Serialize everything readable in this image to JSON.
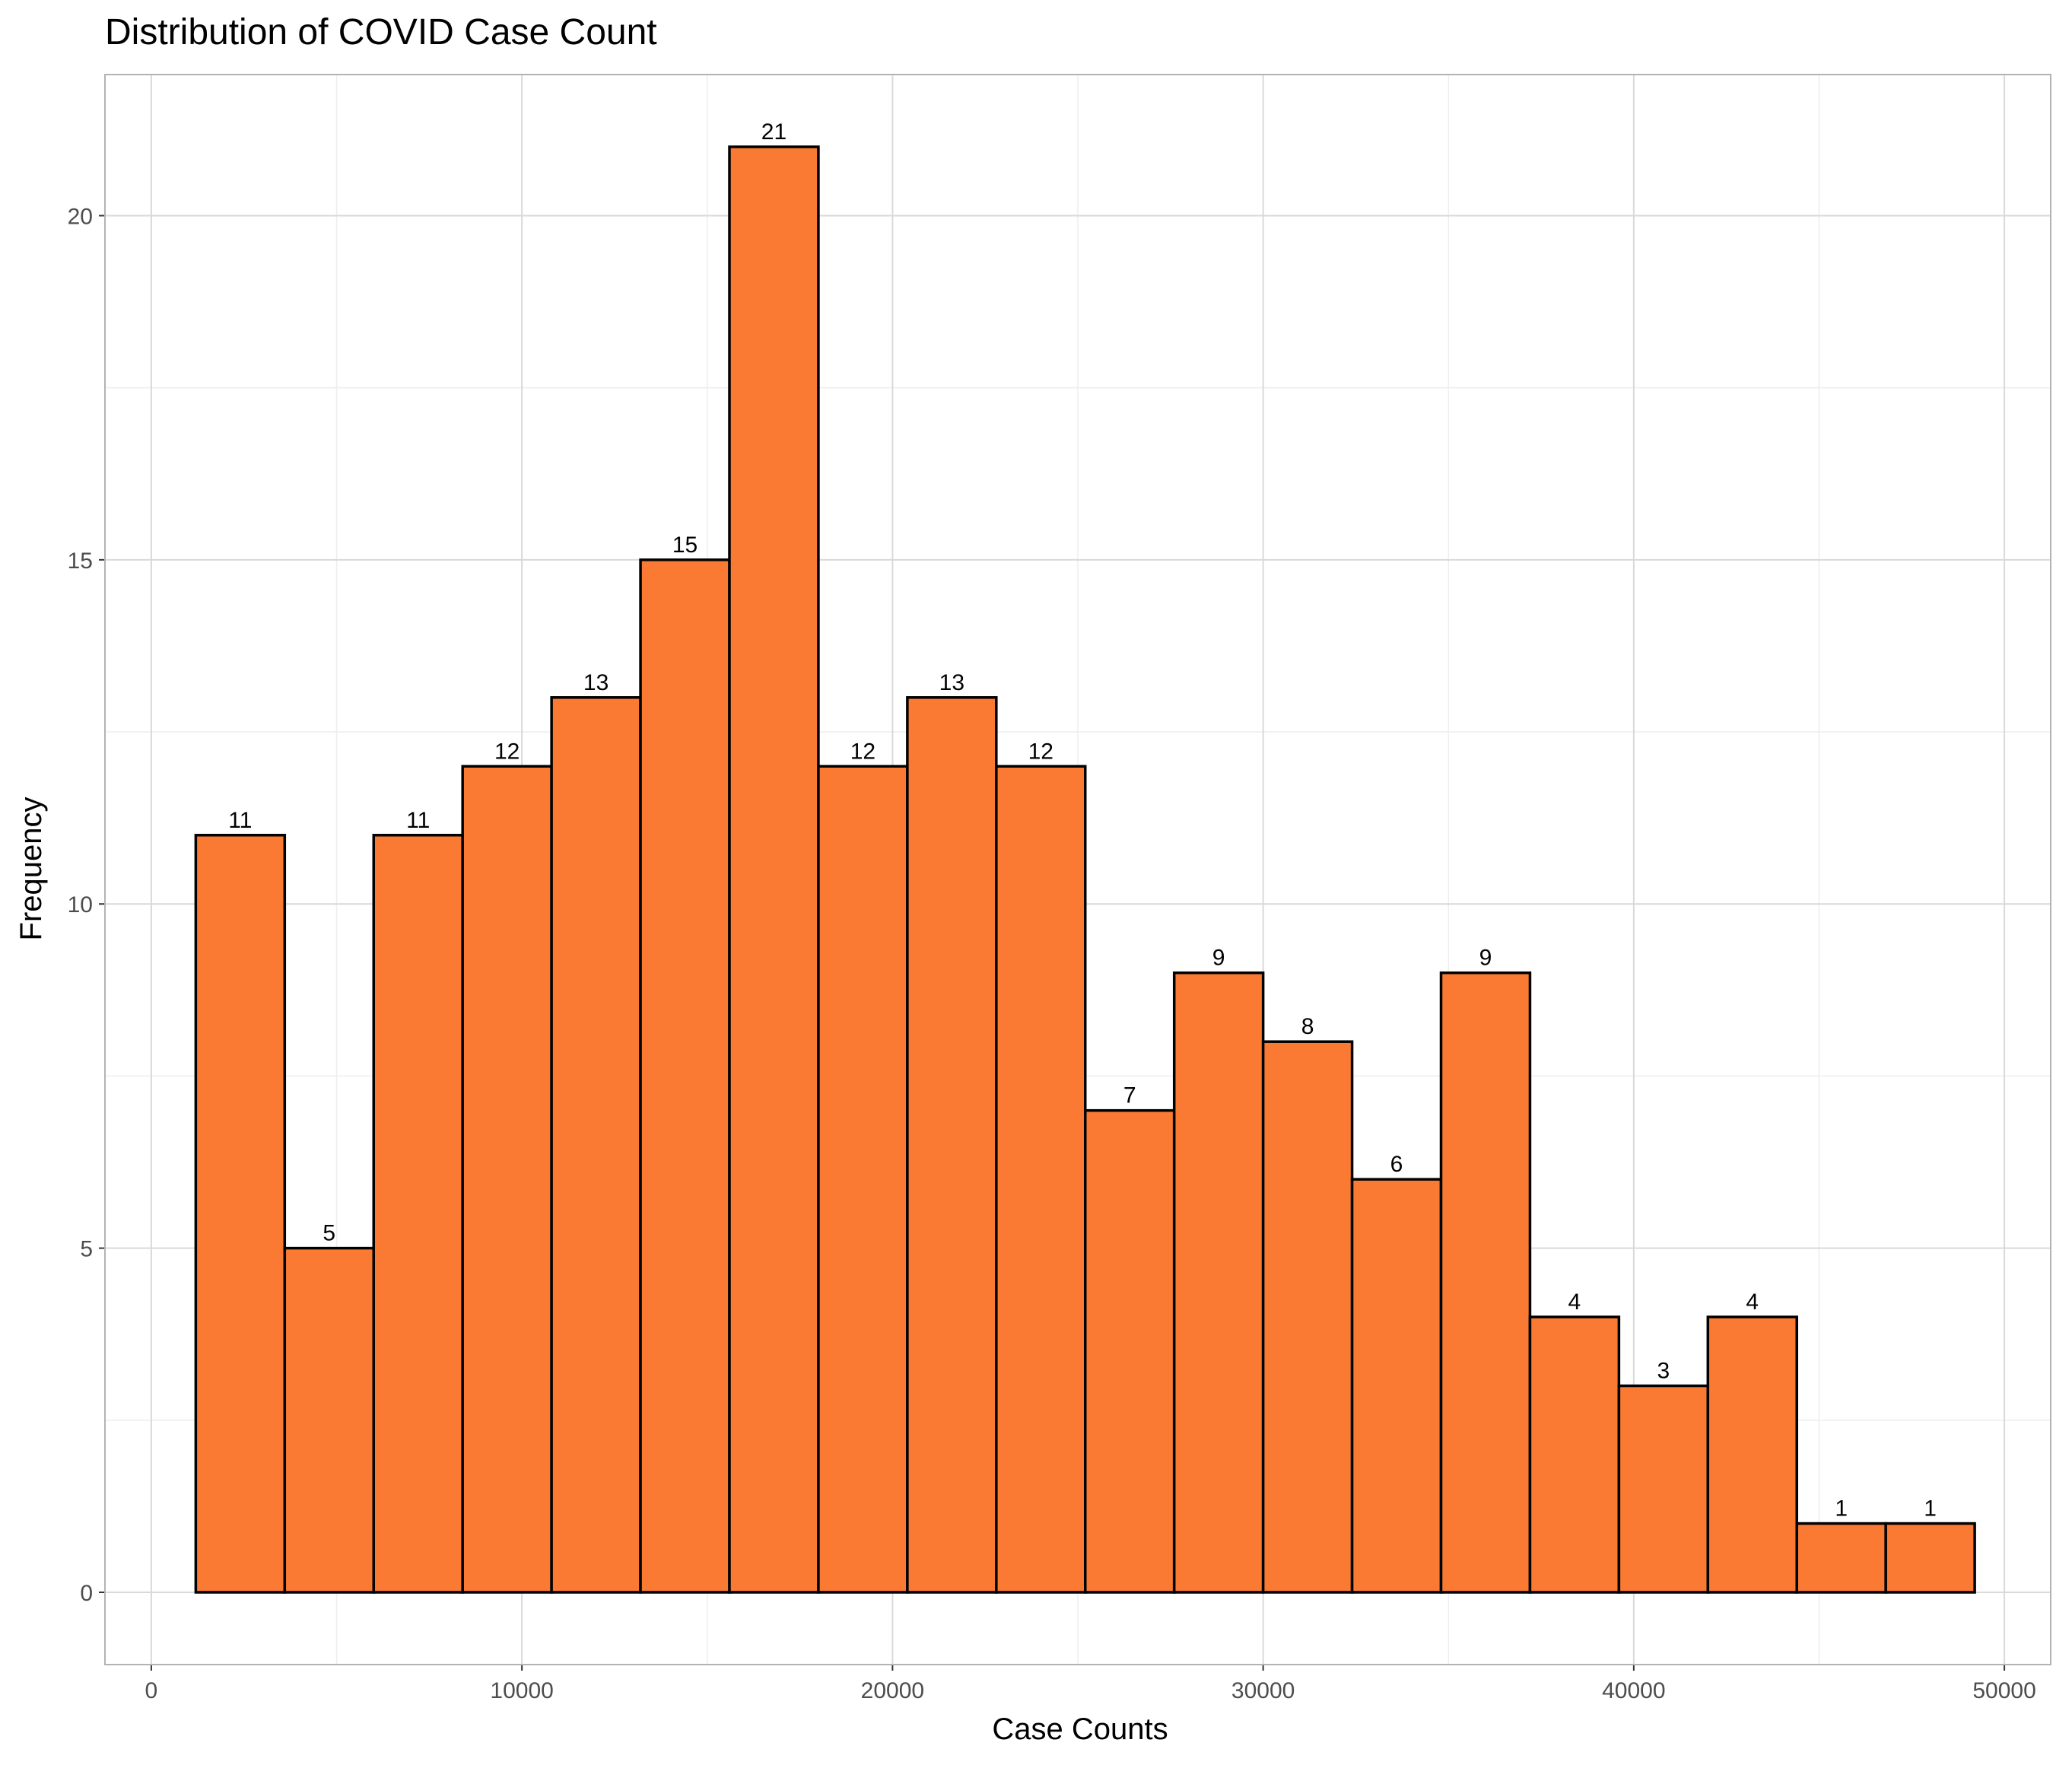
{
  "chart_data": {
    "type": "bar",
    "title": "Distribution of COVID Case Count",
    "xlabel": "Case Counts",
    "ylabel": "Frequency",
    "xlim": [
      -1250,
      51250
    ],
    "ylim": [
      -1.05,
      22.05
    ],
    "x_ticks": [
      0,
      10000,
      20000,
      30000,
      40000,
      50000
    ],
    "y_ticks": [
      0,
      5,
      10,
      15,
      20
    ],
    "grid": true,
    "legend": "none",
    "bins": [
      {
        "start": 1200,
        "end": 3600,
        "value": 11
      },
      {
        "start": 3600,
        "end": 6000,
        "value": 5
      },
      {
        "start": 6000,
        "end": 8400,
        "value": 11
      },
      {
        "start": 8400,
        "end": 10800,
        "value": 12
      },
      {
        "start": 10800,
        "end": 13200,
        "value": 13
      },
      {
        "start": 13200,
        "end": 15600,
        "value": 15
      },
      {
        "start": 15600,
        "end": 18000,
        "value": 21
      },
      {
        "start": 18000,
        "end": 20400,
        "value": 12
      },
      {
        "start": 20400,
        "end": 22800,
        "value": 13
      },
      {
        "start": 22800,
        "end": 25200,
        "value": 12
      },
      {
        "start": 25200,
        "end": 27600,
        "value": 7
      },
      {
        "start": 27600,
        "end": 30000,
        "value": 9
      },
      {
        "start": 30000,
        "end": 32400,
        "value": 8
      },
      {
        "start": 32400,
        "end": 34800,
        "value": 6
      },
      {
        "start": 34800,
        "end": 37200,
        "value": 9
      },
      {
        "start": 37200,
        "end": 39600,
        "value": 4
      },
      {
        "start": 39600,
        "end": 42000,
        "value": 3
      },
      {
        "start": 42000,
        "end": 44400,
        "value": 4
      },
      {
        "start": 44400,
        "end": 46800,
        "value": 1
      },
      {
        "start": 46800,
        "end": 49200,
        "value": 1
      }
    ],
    "colors": {
      "bar_fill": "#FA7A33",
      "bar_stroke": "#000000",
      "grid_major": "#D9D9D9",
      "grid_minor": "#EEEEEE",
      "panel_border": "#B3B3B3"
    }
  }
}
